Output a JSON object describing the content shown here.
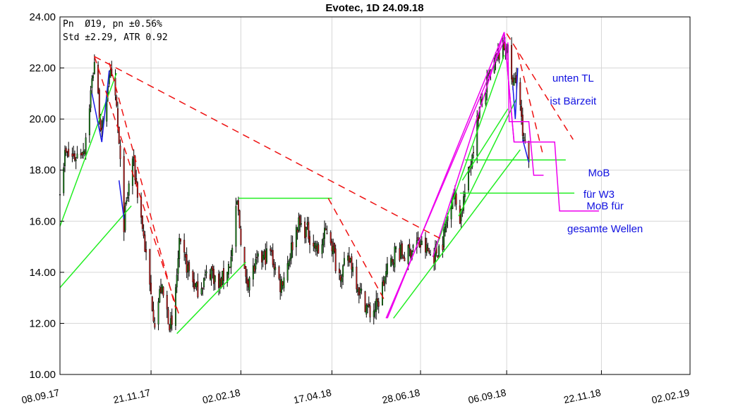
{
  "chart_data": {
    "type": "candlestick",
    "title": "Evotec, 1D 24.09.18",
    "stats": [
      "Pn  Ø19, pn ±0.56%",
      "Std ±2.29, ATR 0.92"
    ],
    "xlim": [
      "2017-09-08",
      "2019-02-02"
    ],
    "ylim": [
      10,
      24
    ],
    "yticks": [
      "10.00",
      "12.00",
      "14.00",
      "16.00",
      "18.00",
      "20.00",
      "22.00",
      "24.00"
    ],
    "xticks": [
      {
        "date": "2017-09-08",
        "label": "08.09.17"
      },
      {
        "date": "2017-11-21",
        "label": "21.11.17"
      },
      {
        "date": "2018-02-02",
        "label": "02.02.18"
      },
      {
        "date": "2018-04-17",
        "label": "17.04.18"
      },
      {
        "date": "2018-06-28",
        "label": "28.06.18"
      },
      {
        "date": "2018-09-06",
        "label": "06.09.18"
      },
      {
        "date": "2018-11-22",
        "label": "22.11.18"
      },
      {
        "date": "2019-02-02",
        "label": "02.02.19"
      }
    ],
    "grid": true,
    "price_path": [
      [
        "2017-09-08",
        17.4
      ],
      [
        "2017-09-12",
        18.6
      ],
      [
        "2017-09-20",
        18.5
      ],
      [
        "2017-09-28",
        18.9
      ],
      [
        "2017-10-06",
        22.3
      ],
      [
        "2017-10-12",
        19.3
      ],
      [
        "2017-10-18",
        21.9
      ],
      [
        "2017-10-24",
        20.4
      ],
      [
        "2017-10-30",
        15.9
      ],
      [
        "2017-11-06",
        18.5
      ],
      [
        "2017-11-14",
        15.8
      ],
      [
        "2017-11-20",
        13.4
      ],
      [
        "2017-11-24",
        12.1
      ],
      [
        "2017-11-29",
        13.4
      ],
      [
        "2017-12-08",
        11.7
      ],
      [
        "2017-12-14",
        15.0
      ],
      [
        "2017-12-28",
        13.3
      ],
      [
        "2018-01-09",
        14.1
      ],
      [
        "2018-01-15",
        13.4
      ],
      [
        "2018-01-25",
        14.5
      ],
      [
        "2018-01-30",
        16.7
      ],
      [
        "2018-02-06",
        13.6
      ],
      [
        "2018-02-16",
        14.4
      ],
      [
        "2018-02-26",
        14.8
      ],
      [
        "2018-03-06",
        13.5
      ],
      [
        "2018-03-10",
        14.0
      ],
      [
        "2018-03-20",
        15.9
      ],
      [
        "2018-03-28",
        15.6
      ],
      [
        "2018-04-06",
        14.8
      ],
      [
        "2018-04-14",
        15.8
      ],
      [
        "2018-04-22",
        13.9
      ],
      [
        "2018-05-02",
        14.5
      ],
      [
        "2018-05-10",
        13.2
      ],
      [
        "2018-05-18",
        12.4
      ],
      [
        "2018-05-24",
        12.7
      ],
      [
        "2018-05-30",
        13.8
      ],
      [
        "2018-06-08",
        14.9
      ],
      [
        "2018-06-16",
        14.6
      ],
      [
        "2018-06-24",
        15.2
      ],
      [
        "2018-07-02",
        14.9
      ],
      [
        "2018-07-08",
        14.6
      ],
      [
        "2018-07-16",
        15.2
      ],
      [
        "2018-07-24",
        17.2
      ],
      [
        "2018-07-30",
        16.2
      ],
      [
        "2018-08-06",
        17.8
      ],
      [
        "2018-08-14",
        20.2
      ],
      [
        "2018-08-22",
        21.5
      ],
      [
        "2018-08-30",
        22.5
      ],
      [
        "2018-09-06",
        22.9
      ],
      [
        "2018-09-11",
        21.3
      ],
      [
        "2018-09-15",
        21.9
      ],
      [
        "2018-09-19",
        19.2
      ],
      [
        "2018-09-24",
        18.3
      ]
    ],
    "annotations": [
      {
        "lines": [
          "unten TL",
          "ist Bärzeit"
        ],
        "date": "2018-10-30",
        "y": [
          21.6,
          20.7
        ]
      },
      {
        "lines": [
          "MoB",
          "für W3"
        ],
        "date": "2018-11-20",
        "y": [
          17.9,
          17.05
        ]
      },
      {
        "lines": [
          "MoB für",
          "gesamte Wellen"
        ],
        "date": "2018-11-25",
        "y": [
          16.6,
          15.7
        ]
      }
    ]
  },
  "overlays": {
    "red_dashed": [
      [
        [
          "2017-10-06",
          22.45
        ],
        [
          "2017-12-14",
          12.3
        ]
      ],
      [
        [
          "2017-10-18",
          22.2
        ],
        [
          "2017-12-11",
          12.6
        ]
      ],
      [
        [
          "2017-10-06",
          22.45
        ],
        [
          "2018-07-15",
          15.3
        ]
      ],
      [
        [
          "2018-04-14",
          16.9
        ],
        [
          "2018-05-31",
          12.8
        ]
      ],
      [
        [
          "2018-09-06",
          23.35
        ],
        [
          "2018-10-30",
          19.2
        ]
      ],
      [
        [
          "2018-09-15",
          22.6
        ],
        [
          "2018-10-05",
          18.7
        ]
      ]
    ],
    "green": [
      [
        [
          "2017-09-08",
          15.8
        ],
        [
          "2017-10-24",
          21.8
        ]
      ],
      [
        [
          "2017-09-08",
          13.4
        ],
        [
          "2017-11-05",
          16.6
        ]
      ],
      [
        [
          "2017-12-12",
          11.6
        ],
        [
          "2018-02-06",
          14.4
        ]
      ],
      [
        [
          "2018-01-31",
          16.9
        ],
        [
          "2018-04-17",
          16.9
        ]
      ],
      [
        [
          "2018-06-06",
          12.2
        ],
        [
          "2018-09-17",
          18.8
        ]
      ],
      [
        [
          "2018-07-08",
          14.6
        ],
        [
          "2018-09-04",
          22.5
        ]
      ],
      [
        [
          "2018-07-29",
          16.2
        ],
        [
          "2018-09-14",
          20.8
        ]
      ],
      [
        [
          "2018-07-30",
          17.1
        ],
        [
          "2018-10-31",
          17.1
        ]
      ],
      [
        [
          "2018-08-03",
          18.4
        ],
        [
          "2018-10-24",
          18.4
        ]
      ],
      [
        [
          "2018-08-01",
          17.6
        ],
        [
          "2018-09-07",
          20.4
        ]
      ]
    ],
    "blue": [
      [
        [
          "2017-10-04",
          21.0
        ],
        [
          "2017-10-12",
          19.1
        ],
        [
          "2017-10-18",
          21.9
        ]
      ],
      [
        [
          "2017-10-26",
          17.6
        ],
        [
          "2017-10-30",
          16.1
        ]
      ],
      [
        [
          "2018-09-11",
          21.3
        ],
        [
          "2018-09-13",
          20.0
        ],
        [
          "2018-09-15",
          22.0
        ]
      ],
      [
        [
          "2018-09-19",
          19.2
        ],
        [
          "2018-09-24",
          18.3
        ]
      ]
    ],
    "magenta": [
      [
        [
          "2018-06-01",
          12.2
        ],
        [
          "2018-09-04",
          23.4
        ],
        [
          "2018-09-12",
          19.1
        ],
        [
          "2018-10-15",
          19.1
        ],
        [
          "2018-10-19",
          16.4
        ],
        [
          "2018-11-20",
          16.4
        ]
      ],
      [
        [
          "2018-07-08",
          14.6
        ],
        [
          "2018-09-04",
          23.4
        ],
        [
          "2018-09-12",
          19.1
        ]
      ],
      [
        [
          "2018-09-07",
          23.0
        ],
        [
          "2018-09-08",
          19.9
        ],
        [
          "2018-09-24",
          19.9
        ],
        [
          "2018-09-28",
          17.8
        ],
        [
          "2018-10-06",
          17.8
        ]
      ],
      [
        [
          "2018-05-31",
          12.2
        ],
        [
          "2018-09-05",
          23.2
        ]
      ]
    ]
  }
}
